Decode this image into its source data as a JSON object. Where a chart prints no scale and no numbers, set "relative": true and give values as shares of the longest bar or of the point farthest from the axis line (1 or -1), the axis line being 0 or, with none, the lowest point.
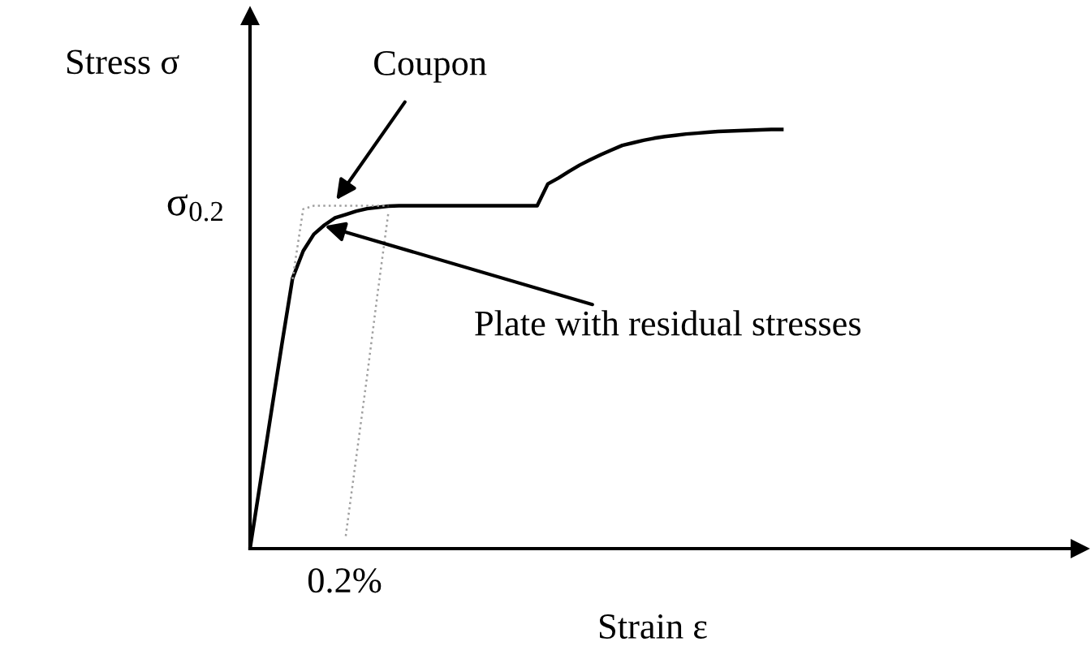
{
  "chart_data": {
    "type": "line",
    "relative": true,
    "xlabel": "Strain ε",
    "ylabel": "Stress σ",
    "marker": "none",
    "categories": [
      null,
      null,
      null,
      null,
      null,
      null,
      null,
      null,
      null,
      null,
      null,
      null,
      null,
      null,
      null,
      null,
      null,
      null,
      null,
      null,
      null,
      null,
      null,
      null,
      null,
      null,
      null,
      null,
      null,
      null,
      null,
      null,
      null,
      null,
      null,
      null,
      null,
      null,
      null,
      null,
      null,
      null,
      null,
      null,
      null,
      null,
      null,
      null,
      null,
      null,
      null,
      null,
      null,
      null,
      null,
      null,
      null,
      null,
      null,
      null,
      null,
      null,
      null,
      null,
      null,
      null,
      null,
      null,
      null,
      null,
      null,
      null,
      null,
      null,
      null,
      null,
      null,
      null,
      null
    ],
    "series": [
      {
        "color": "#000000",
        "line_style": "solid",
        "values": [
          0,
          0.163,
          0.326,
          0.488,
          0.645,
          0.71,
          0.75,
          0.772,
          0.789,
          0.797,
          0.805,
          0.811,
          0.814,
          0.817,
          0.818,
          0.818,
          0.818,
          0.818,
          0.818,
          0.818,
          0.818,
          0.818,
          0.818,
          0.818,
          0.818,
          0.818,
          0.818,
          0.818,
          0.87,
          0.884,
          0.9,
          0.915,
          0.928,
          0.94,
          0.951,
          0.962,
          0.968,
          0.974,
          0.979,
          0.983,
          0.986,
          0.989,
          0.991,
          0.993,
          0.995,
          0.996,
          0.997,
          0.998,
          0.999,
          1.0,
          1.0,
          null,
          null,
          null,
          null,
          null,
          null,
          null,
          null,
          null,
          null,
          null,
          null,
          null,
          null,
          null,
          null,
          null,
          null,
          null,
          null,
          null,
          null,
          null,
          null,
          null,
          null,
          null,
          null
        ]
      },
      {
        "color": "#a0a0a0",
        "line_style": "dotted",
        "values": [
          null,
          null,
          null,
          null,
          0.643,
          0.81,
          0.818,
          0.818,
          0.818,
          0.818,
          0.818,
          0.818,
          0.818,
          0.818,
          null,
          null,
          null,
          null,
          null,
          null,
          null,
          null,
          null,
          null,
          null,
          null,
          null,
          null,
          null,
          null,
          null,
          null,
          null,
          null,
          null,
          null,
          null,
          null,
          null,
          null,
          null,
          null,
          null,
          null,
          null,
          null,
          null,
          null,
          null,
          null,
          null,
          null,
          null,
          null,
          null,
          null,
          null,
          null,
          null,
          null,
          null,
          null,
          null,
          null,
          null,
          null,
          null,
          null,
          null,
          null,
          null,
          null,
          null,
          null,
          null,
          null,
          null,
          null,
          null
        ]
      },
      {
        "color": "#a0a0a0",
        "line_style": "dotted",
        "values": [
          null,
          null,
          null,
          null,
          null,
          null,
          null,
          null,
          null,
          0.03,
          0.22,
          0.41,
          0.61,
          0.8,
          null,
          null,
          null,
          null,
          null,
          null,
          null,
          null,
          null,
          null,
          null,
          null,
          null,
          null,
          null,
          null,
          null,
          null,
          null,
          null,
          null,
          null,
          null,
          null,
          null,
          null,
          null,
          null,
          null,
          null,
          null,
          null,
          null,
          null,
          null,
          null,
          null,
          null,
          null,
          null,
          null,
          null,
          null,
          null,
          null,
          null,
          null,
          null,
          null,
          null,
          null,
          null,
          null,
          null,
          null,
          null,
          null,
          null,
          null,
          null,
          null,
          null,
          null,
          null,
          null
        ]
      }
    ],
    "annotations": [
      "Coupon",
      "Plate with residual stresses",
      "σ$_{0.2}$",
      "0.2%"
    ]
  }
}
